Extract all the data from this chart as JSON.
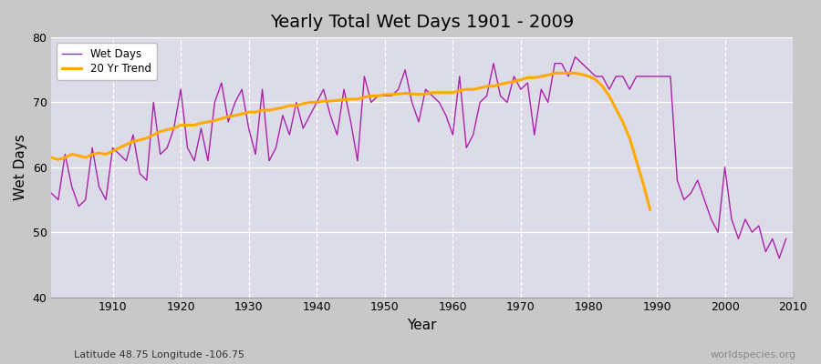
{
  "title": "Yearly Total Wet Days 1901 - 2009",
  "xlabel": "Year",
  "ylabel": "Wet Days",
  "subtitle": "Latitude 48.75 Longitude -106.75",
  "watermark": "worldspecies.org",
  "fig_bg_color": "#c8c8c8",
  "plot_bg_color": "#dcdce8",
  "wet_days_color": "#aa22aa",
  "trend_color": "#ffaa00",
  "ylim": [
    40,
    80
  ],
  "years": [
    1901,
    1902,
    1903,
    1904,
    1905,
    1906,
    1907,
    1908,
    1909,
    1910,
    1911,
    1912,
    1913,
    1914,
    1915,
    1916,
    1917,
    1918,
    1919,
    1920,
    1921,
    1922,
    1923,
    1924,
    1925,
    1926,
    1927,
    1928,
    1929,
    1930,
    1931,
    1932,
    1933,
    1934,
    1935,
    1936,
    1937,
    1938,
    1939,
    1940,
    1941,
    1942,
    1943,
    1944,
    1945,
    1946,
    1947,
    1948,
    1949,
    1950,
    1951,
    1952,
    1953,
    1954,
    1955,
    1956,
    1957,
    1958,
    1959,
    1960,
    1961,
    1962,
    1963,
    1964,
    1965,
    1966,
    1967,
    1968,
    1969,
    1970,
    1971,
    1972,
    1973,
    1974,
    1975,
    1976,
    1977,
    1978,
    1979,
    1980,
    1981,
    1982,
    1983,
    1984,
    1985,
    1986,
    1987,
    1988,
    1989,
    1990,
    1991,
    1992,
    1993,
    1994,
    1995,
    1996,
    1997,
    1998,
    1999,
    2000,
    2001,
    2002,
    2003,
    2004,
    2005,
    2006,
    2007,
    2008,
    2009
  ],
  "wet_days": [
    56,
    55,
    62,
    57,
    54,
    55,
    63,
    57,
    55,
    63,
    62,
    61,
    65,
    59,
    58,
    70,
    62,
    63,
    66,
    72,
    63,
    61,
    66,
    61,
    70,
    73,
    67,
    70,
    72,
    66,
    62,
    72,
    61,
    63,
    68,
    65,
    70,
    66,
    68,
    70,
    72,
    68,
    65,
    72,
    67,
    61,
    74,
    70,
    71,
    71,
    71,
    72,
    75,
    70,
    67,
    72,
    71,
    70,
    68,
    65,
    74,
    63,
    65,
    70,
    71,
    76,
    71,
    70,
    74,
    72,
    73,
    65,
    72,
    70,
    76,
    76,
    74,
    77,
    76,
    75,
    74,
    74,
    72,
    74,
    74,
    72,
    74,
    74,
    74,
    74,
    74,
    74,
    58,
    55,
    56,
    58,
    55,
    52,
    50,
    60,
    52,
    49,
    52,
    50,
    51,
    47,
    49,
    46,
    49
  ],
  "trend_years": [
    1901,
    1902,
    1903,
    1904,
    1905,
    1906,
    1907,
    1908,
    1909,
    1910,
    1911,
    1912,
    1913,
    1914,
    1915,
    1916,
    1917,
    1918,
    1919,
    1920,
    1921,
    1922,
    1923,
    1924,
    1925,
    1926,
    1927,
    1928,
    1929,
    1930,
    1931,
    1932,
    1933,
    1934,
    1935,
    1936,
    1937,
    1938,
    1939,
    1940,
    1941,
    1942,
    1943,
    1944,
    1945,
    1946,
    1947,
    1948,
    1949,
    1950,
    1951,
    1952,
    1953,
    1954,
    1955,
    1956,
    1957,
    1958,
    1959,
    1960,
    1961,
    1962,
    1963,
    1964,
    1965,
    1966,
    1967,
    1968,
    1969,
    1970,
    1971,
    1972,
    1973,
    1974,
    1975,
    1976,
    1977,
    1978,
    1979,
    1980,
    1981,
    1982,
    1983,
    1984,
    1985,
    1986,
    1987,
    1988,
    1989
  ],
  "trend_vals": [
    61.5,
    61.2,
    61.5,
    62.0,
    61.8,
    61.5,
    62.0,
    62.2,
    62.0,
    62.5,
    63.0,
    63.5,
    64.0,
    64.2,
    64.5,
    65.0,
    65.5,
    65.8,
    66.0,
    66.5,
    66.5,
    66.5,
    66.8,
    67.0,
    67.2,
    67.5,
    67.8,
    68.0,
    68.2,
    68.5,
    68.5,
    68.8,
    68.8,
    69.0,
    69.2,
    69.5,
    69.5,
    69.8,
    70.0,
    70.0,
    70.2,
    70.2,
    70.3,
    70.4,
    70.5,
    70.5,
    70.8,
    71.0,
    71.0,
    71.2,
    71.2,
    71.3,
    71.4,
    71.3,
    71.2,
    71.3,
    71.5,
    71.5,
    71.5,
    71.5,
    71.8,
    72.0,
    72.0,
    72.2,
    72.5,
    72.5,
    72.8,
    73.0,
    73.2,
    73.5,
    73.8,
    73.8,
    74.0,
    74.2,
    74.5,
    74.5,
    74.5,
    74.5,
    74.3,
    74.0,
    73.5,
    72.5,
    71.0,
    69.0,
    67.0,
    64.5,
    61.0,
    57.5,
    53.5
  ],
  "legend_labels": [
    "Wet Days",
    "20 Yr Trend"
  ]
}
